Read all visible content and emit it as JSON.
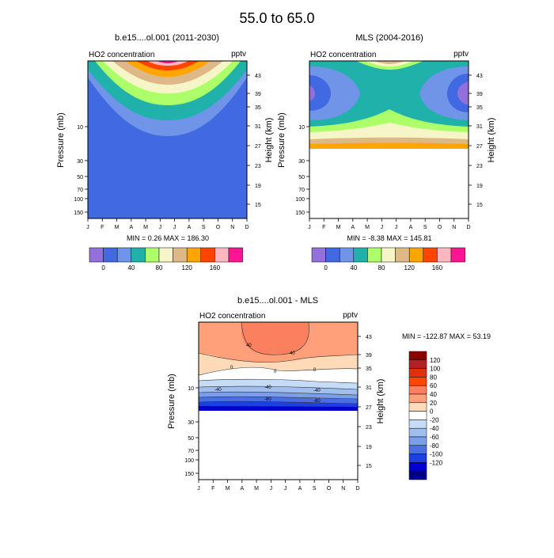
{
  "title": "55.0 to  65.0",
  "chart_data": [
    {
      "type": "heatmap",
      "title": "b.e15....ol.001 (2011-2030)",
      "left_label": "HO2 concentration",
      "units": "pptv",
      "ylabel": "Pressure (mb)",
      "y2label": "Height (km)",
      "months": [
        "J",
        "F",
        "M",
        "A",
        "M",
        "J",
        "J",
        "A",
        "S",
        "O",
        "N",
        "D"
      ],
      "pressure_ticks": [
        "10",
        "30",
        "50",
        "70",
        "100",
        "150"
      ],
      "height_ticks": [
        "43",
        "39",
        "35",
        "31",
        "27",
        "23",
        "19",
        "15"
      ],
      "stats": "MIN =   0.26  MAX = 186.30",
      "min": 0.26,
      "max": 186.3,
      "levels": [
        -20,
        0,
        20,
        40,
        60,
        80,
        100,
        120,
        140,
        160,
        180
      ],
      "colorbar_labels": [
        "0",
        "40",
        "80",
        "120",
        "160"
      ],
      "colors": [
        "#9370DB",
        "#4169E1",
        "#6F94E8",
        "#20B2AA",
        "#ADFF69",
        "#F5F5C8",
        "#DEB887",
        "#FFA500",
        "#FF4500",
        "#FFB6C1",
        "#FF1493"
      ]
    },
    {
      "type": "heatmap",
      "title": "MLS (2004-2016)",
      "left_label": "HO2 concentration",
      "units": "pptv",
      "ylabel": "Pressure (mb)",
      "y2label": "Height (km)",
      "months": [
        "J",
        "F",
        "M",
        "A",
        "M",
        "J",
        "J",
        "A",
        "S",
        "O",
        "N",
        "D"
      ],
      "pressure_ticks": [
        "10",
        "30",
        "50",
        "70",
        "100",
        "150"
      ],
      "height_ticks": [
        "43",
        "39",
        "35",
        "31",
        "27",
        "23",
        "19",
        "15"
      ],
      "stats": "MIN =  -8.38  MAX = 145.81",
      "min": -8.38,
      "max": 145.81,
      "colorbar_labels": [
        "0",
        "40",
        "80",
        "120",
        "160"
      ]
    },
    {
      "type": "heatmap",
      "title": "b.e15....ol.001 - MLS",
      "left_label": "HO2 concentration",
      "units": "pptv",
      "ylabel": "Pressure (mb)",
      "y2label": "Height (km)",
      "months": [
        "J",
        "F",
        "M",
        "A",
        "M",
        "J",
        "J",
        "A",
        "S",
        "O",
        "N",
        "D"
      ],
      "pressure_ticks": [
        "10",
        "30",
        "50",
        "70",
        "100",
        "150"
      ],
      "height_ticks": [
        "43",
        "39",
        "35",
        "31",
        "27",
        "23",
        "19",
        "15"
      ],
      "stats": "MIN = -122.87  MAX =  53.19",
      "min": -122.87,
      "max": 53.19,
      "contour_labels": [
        "40",
        "40",
        "0",
        "0",
        "0",
        "-40",
        "-40",
        "-40",
        "-80",
        "-80"
      ],
      "colorbar_labels": [
        "120",
        "100",
        "80",
        "60",
        "40",
        "20",
        "0",
        "-20",
        "-40",
        "-60",
        "-80",
        "-100",
        "-120"
      ],
      "colors": [
        "#8B0000",
        "#B22222",
        "#E03010",
        "#FF4500",
        "#FA8060",
        "#FFA07A",
        "#FFDAB9",
        "#FFFFFF",
        "#C6DBF5",
        "#A0BFEF",
        "#7A9FE8",
        "#4A6FE0",
        "#1E40E0",
        "#0000CD",
        "#00008B"
      ]
    }
  ]
}
